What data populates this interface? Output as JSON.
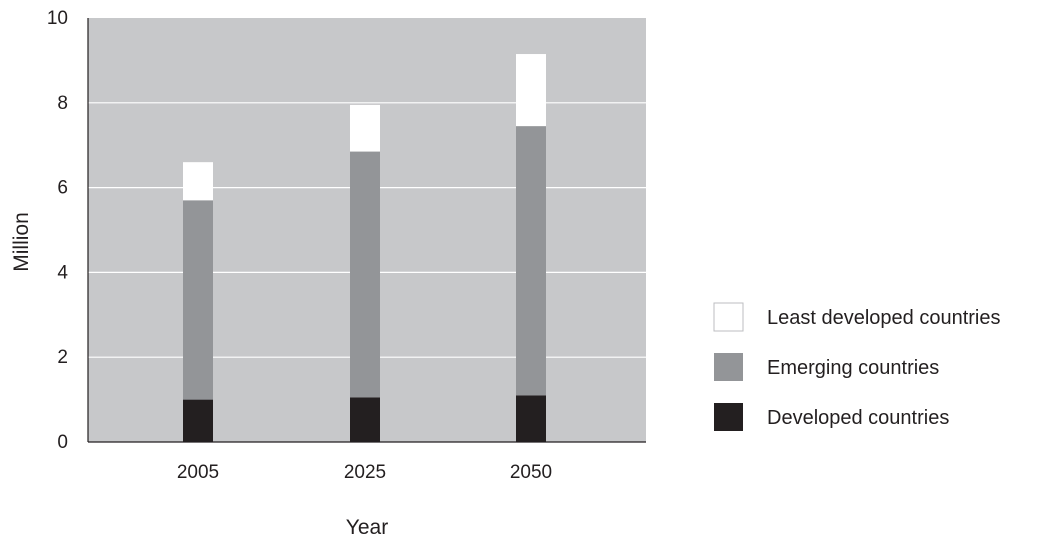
{
  "chart_data": {
    "type": "bar",
    "stacked": true,
    "categories": [
      "2005",
      "2025",
      "2050"
    ],
    "series": [
      {
        "name": "Developed countries",
        "values": [
          1.0,
          1.05,
          1.1
        ],
        "color": "#231f20"
      },
      {
        "name": "Emerging countries",
        "values": [
          4.7,
          5.8,
          6.35
        ],
        "color": "#939598"
      },
      {
        "name": "Least developed countries",
        "values": [
          0.9,
          1.1,
          1.7
        ],
        "color": "#ffffff"
      }
    ],
    "xlabel": "Year",
    "ylabel": "Million",
    "ylim": [
      0,
      10
    ],
    "yticks": [
      "0",
      "2",
      "4",
      "6",
      "8",
      "10"
    ],
    "grid": true,
    "plot_background": "#c7c8ca",
    "legend": {
      "position": "right",
      "order": [
        "Least developed countries",
        "Emerging countries",
        "Developed countries"
      ]
    }
  }
}
